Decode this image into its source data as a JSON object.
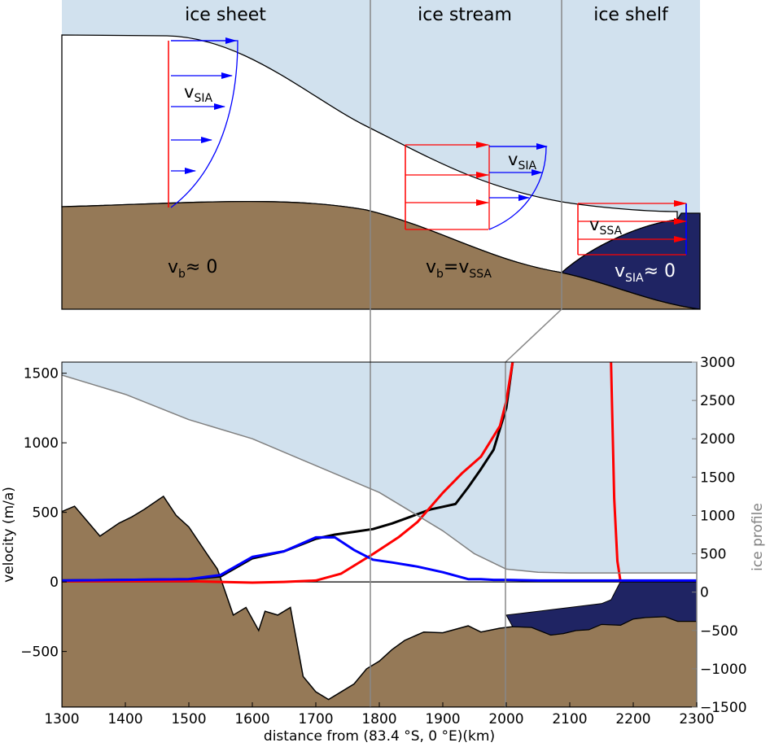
{
  "top_panel": {
    "region_labels": {
      "sheet": "ice sheet",
      "stream": "ice stream",
      "shelf": "ice shelf"
    },
    "velocity_labels": {
      "sheet_vsia_main": "v",
      "sheet_vsia_sub": "SIA",
      "stream_vsia_main": "v",
      "stream_vsia_sub": "SIA",
      "shelf_vssa_main": "v",
      "shelf_vssa_sub": "SSA",
      "bed_sheet_main": "v",
      "bed_sheet_sub": "b",
      "bed_sheet_rel": "≈ 0",
      "bed_stream_main": "v",
      "bed_stream_sub": "b",
      "bed_stream_eq": "=v",
      "bed_stream_sub2": "SSA",
      "shelf_bottom_main": "v",
      "shelf_bottom_sub": "SIA",
      "shelf_bottom_rel": "≈ 0"
    },
    "colors": {
      "ice_sky": "#d1e1ee",
      "bed": "#957957",
      "ocean": "#1f2463",
      "sia_arrow": "#0000ff",
      "ssa_arrow": "#ff0000"
    }
  },
  "chart_data": {
    "type": "line",
    "xlabel": "distance from (83.4 °S, 0 °E)(km)",
    "ylabel_left": "velocity (m/a)",
    "ylabel_right": "ice profile",
    "xlim": [
      1300,
      2300
    ],
    "ylim_left": [
      -900,
      1580
    ],
    "ylim_right": [
      -1500,
      3000
    ],
    "x_ticks": [
      "1300",
      "1400",
      "1500",
      "1600",
      "1700",
      "1800",
      "1900",
      "2000",
      "2100",
      "2200",
      "2300"
    ],
    "y_ticks_left": [
      "1500",
      "1000",
      "500",
      "0",
      "−500"
    ],
    "y_ticks_right": [
      "3000",
      "2500",
      "2000",
      "1500",
      "1000",
      "500",
      "0",
      "−500",
      "−1000",
      "−1500"
    ],
    "series": [
      {
        "color": "#000000",
        "x": [
          1300,
          1400,
          1500,
          1550,
          1600,
          1650,
          1700,
          1730,
          1760,
          1790,
          1820,
          1850,
          1880,
          1900,
          1920,
          1940,
          1960,
          1980,
          2000,
          2010
        ],
        "y": [
          10,
          15,
          20,
          40,
          170,
          220,
          310,
          340,
          360,
          380,
          420,
          470,
          520,
          540,
          560,
          680,
          810,
          950,
          1250,
          1580
        ]
      },
      {
        "color": "#ff0000",
        "x": [
          1300,
          1500,
          1600,
          1650,
          1700,
          1740,
          1790,
          1830,
          1860,
          1900,
          1930,
          1960,
          1990,
          2000,
          2010
        ],
        "y": [
          5,
          5,
          -5,
          0,
          10,
          60,
          200,
          320,
          430,
          640,
          780,
          900,
          1120,
          1300,
          1580
        ]
      },
      {
        "color": "#ff0000",
        "x": [
          2165,
          2170,
          2175,
          2180
        ],
        "y": [
          1580,
          600,
          150,
          0
        ]
      },
      {
        "color": "#0000ff",
        "x": [
          1300,
          1400,
          1500,
          1550,
          1600,
          1650,
          1700,
          1730,
          1760,
          1790,
          1820,
          1860,
          1900,
          1940,
          1960,
          1980,
          2000,
          2050,
          2100,
          2200,
          2300
        ],
        "y": [
          10,
          15,
          20,
          50,
          180,
          220,
          320,
          320,
          230,
          160,
          140,
          110,
          70,
          20,
          20,
          15,
          15,
          10,
          10,
          10,
          10
        ]
      },
      {
        "color": "#808080",
        "axis": "right",
        "x": [
          1300,
          1400,
          1500,
          1600,
          1700,
          1800,
          1850,
          1900,
          1950,
          2000,
          2050,
          2100,
          2200,
          2300
        ],
        "y": [
          2830,
          2580,
          2250,
          2000,
          1650,
          1300,
          1050,
          800,
          500,
          300,
          260,
          250,
          250,
          250
        ]
      }
    ],
    "bed_profile": {
      "x": [
        1300,
        1320,
        1360,
        1390,
        1410,
        1430,
        1460,
        1480,
        1500,
        1530,
        1545,
        1570,
        1590,
        1610,
        1620,
        1640,
        1660,
        1680,
        1700,
        1720,
        1740,
        1760,
        1780,
        1800,
        1820,
        1840,
        1870,
        1900,
        1940,
        1960,
        1990,
        2010,
        2040,
        2070,
        2090,
        2110,
        2130,
        2150,
        2180,
        2200,
        2220,
        2250,
        2270,
        2300
      ],
      "y": [
        1050,
        1120,
        730,
        900,
        980,
        1080,
        1250,
        1000,
        850,
        480,
        300,
        -300,
        -200,
        -500,
        -250,
        -300,
        -200,
        -1100,
        -1300,
        -1400,
        -1300,
        -1200,
        -1000,
        -900,
        -750,
        -630,
        -520,
        -530,
        -440,
        -520,
        -470,
        -450,
        -460,
        -560,
        -540,
        -500,
        -490,
        -420,
        -430,
        -350,
        -330,
        -320,
        -380,
        -380
      ]
    },
    "ocean_profile": {
      "x": [
        2000,
        2050,
        2100,
        2150,
        2165,
        2180,
        2300
      ],
      "top_y": [
        -300,
        -250,
        -200,
        -150,
        -100,
        140,
        140
      ]
    }
  }
}
